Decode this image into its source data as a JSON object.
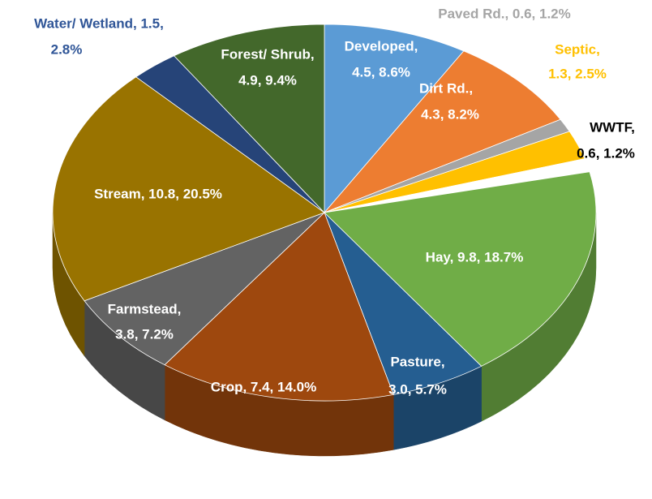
{
  "chart_data": {
    "type": "pie3d",
    "values": [
      4.5,
      4.3,
      0.6,
      1.3,
      0.6,
      9.8,
      3.0,
      7.4,
      3.8,
      10.8,
      1.5,
      4.9
    ],
    "value_labels": [
      [
        "Developed,",
        "4.5, 8.6%"
      ],
      [
        "Dirt Rd.,",
        "4.3, 8.2%"
      ],
      [
        "Paved Rd., 0.6, 1.2%"
      ],
      [
        "Septic,",
        "1.3, 2.5%"
      ],
      [
        "WWTF,",
        "0.6, 1.2%"
      ],
      [
        "Hay, 9.8, 18.7%"
      ],
      [
        "Pasture,",
        "3.0, 5.7%"
      ],
      [
        "Crop, 7.4, 14.0%"
      ],
      [
        "Farmstead,",
        "3.8, 7.2%"
      ],
      [
        "Stream, 10.8, 20.5%"
      ],
      [
        "Water/ Wetland, 1.5,",
        "2.8%"
      ],
      [
        "Forest/ Shrub,",
        "4.9, 9.4%"
      ]
    ],
    "colors": [
      "#5b9bd5",
      "#ed7d31",
      "#a5a5a5",
      "#ffc000",
      "#ffffff",
      "#70ad47",
      "#255e91",
      "#9e480e",
      "#636363",
      "#997300",
      "#264478",
      "#43682b"
    ],
    "label_colors": [
      "#ffffff",
      "#ffffff",
      "#a5a5a5",
      "#ffc000",
      "#000000",
      "#ffffff",
      "#ffffff",
      "#ffffff",
      "#ffffff",
      "#ffffff",
      "#2f5597",
      "#ffffff"
    ]
  }
}
